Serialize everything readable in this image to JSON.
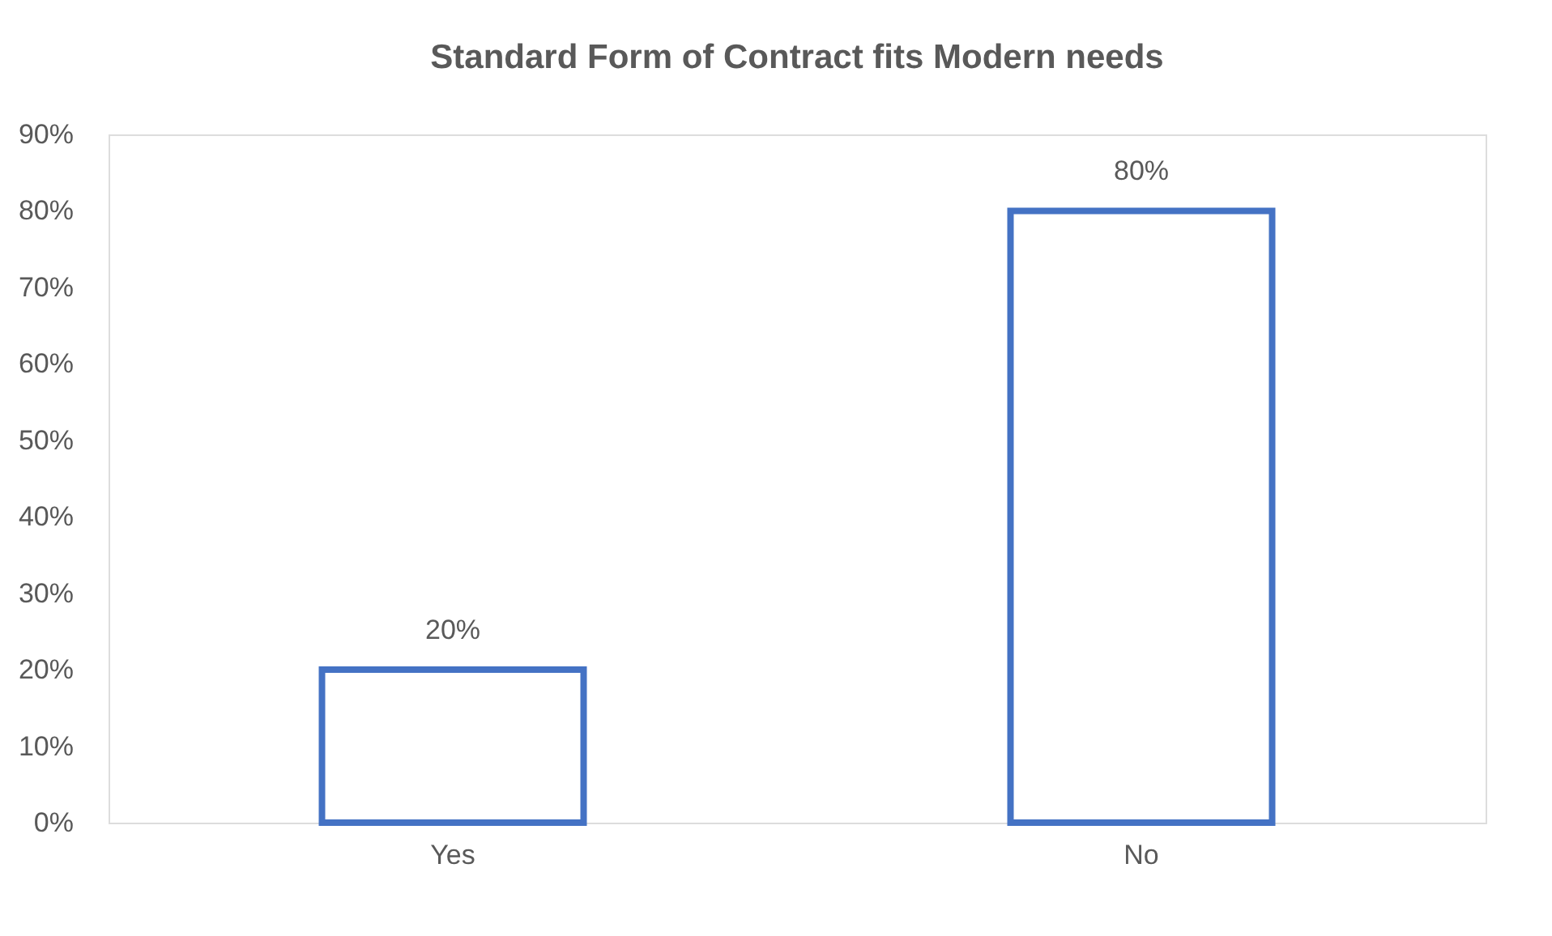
{
  "chart_data": {
    "type": "bar",
    "title": "Standard Form of Contract fits Modern needs",
    "categories": [
      "Yes",
      "No"
    ],
    "values": [
      20,
      80
    ],
    "value_labels": [
      "20%",
      "80%"
    ],
    "color": "#4472c4",
    "ylim": [
      0,
      90
    ],
    "yticks": [
      {
        "value": 0,
        "label": "0%"
      },
      {
        "value": 10,
        "label": "10%"
      },
      {
        "value": 20,
        "label": "20%"
      },
      {
        "value": 30,
        "label": "30%"
      },
      {
        "value": 40,
        "label": "40%"
      },
      {
        "value": 50,
        "label": "50%"
      },
      {
        "value": 60,
        "label": "60%"
      },
      {
        "value": 70,
        "label": "70%"
      },
      {
        "value": 80,
        "label": "80%"
      },
      {
        "value": 90,
        "label": "90%"
      }
    ],
    "grid": false
  }
}
